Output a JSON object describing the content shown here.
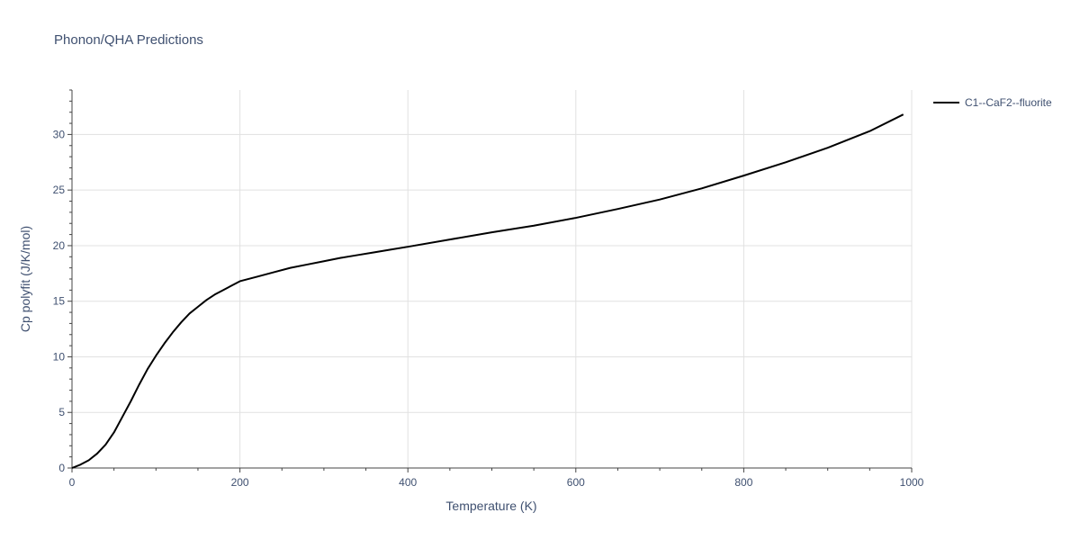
{
  "chart_data": {
    "type": "line",
    "title": "Phonon/QHA Predictions",
    "xlabel": "Temperature (K)",
    "ylabel": "Cp polyfit (J/K/mol)",
    "xlim": [
      0,
      1000
    ],
    "ylim": [
      0,
      34
    ],
    "xticks": [
      0,
      200,
      400,
      600,
      800,
      1000
    ],
    "yticks": [
      0,
      5,
      10,
      15,
      20,
      25,
      30
    ],
    "grid": true,
    "legend_position": "top-right",
    "series": [
      {
        "name": "C1--CaF2--fluorite",
        "color": "#000000",
        "x": [
          0,
          10,
          20,
          30,
          40,
          50,
          60,
          70,
          80,
          90,
          100,
          110,
          120,
          130,
          140,
          150,
          160,
          170,
          180,
          190,
          200,
          220,
          240,
          260,
          280,
          300,
          320,
          340,
          360,
          380,
          400,
          450,
          500,
          550,
          600,
          650,
          700,
          750,
          800,
          850,
          900,
          950,
          990
        ],
        "y": [
          0,
          0.3,
          0.7,
          1.3,
          2.1,
          3.2,
          4.6,
          6.0,
          7.5,
          8.9,
          10.1,
          11.2,
          12.2,
          13.1,
          13.9,
          14.5,
          15.1,
          15.6,
          16.0,
          16.4,
          16.8,
          17.2,
          17.6,
          18.0,
          18.3,
          18.6,
          18.9,
          19.15,
          19.4,
          19.65,
          19.9,
          20.55,
          21.2,
          21.8,
          22.5,
          23.3,
          24.15,
          25.15,
          26.3,
          27.5,
          28.8,
          30.3,
          31.8
        ]
      }
    ]
  }
}
